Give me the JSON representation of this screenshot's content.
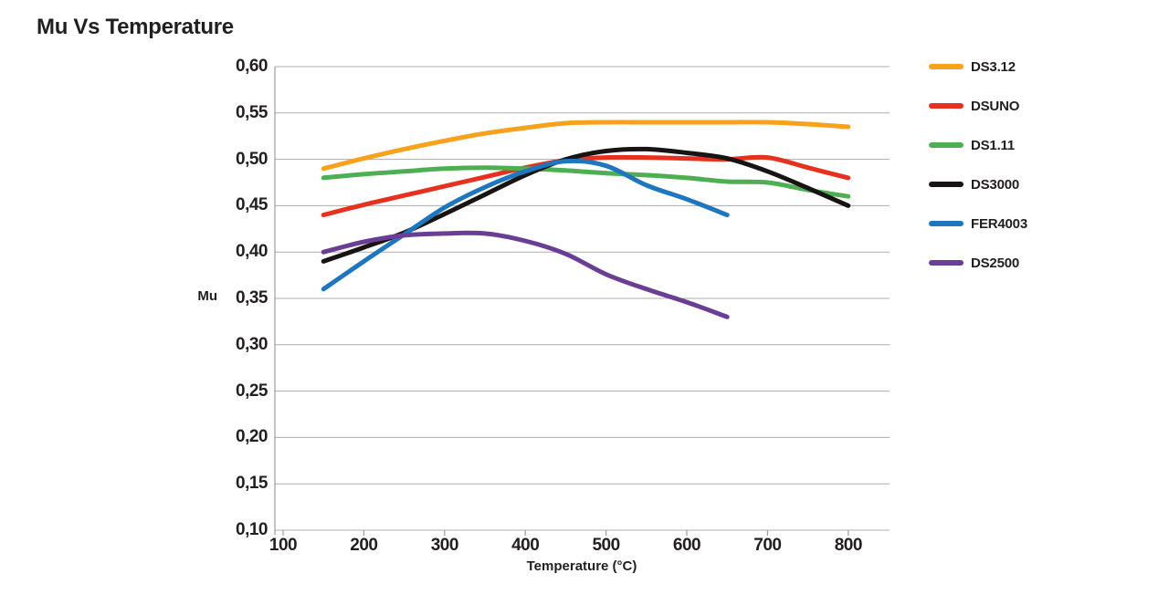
{
  "chart_data": {
    "type": "line",
    "title": "Mu Vs Temperature",
    "xlabel": "Temperature (°C)",
    "ylabel": "Mu",
    "xlim": [
      100,
      850
    ],
    "ylim": [
      0.1,
      0.6
    ],
    "grid": "horizontal",
    "legend_position": "right",
    "x_ticks": [
      {
        "label": "100",
        "value": 100
      },
      {
        "label": "200",
        "value": 200
      },
      {
        "label": "300",
        "value": 300
      },
      {
        "label": "400",
        "value": 400
      },
      {
        "label": "500",
        "value": 500
      },
      {
        "label": "600",
        "value": 600
      },
      {
        "label": "700",
        "value": 700
      },
      {
        "label": "800",
        "value": 800
      }
    ],
    "y_ticks": [
      {
        "label": "0,60",
        "value": 0.6
      },
      {
        "label": "0,55",
        "value": 0.55
      },
      {
        "label": "0,50",
        "value": 0.5
      },
      {
        "label": "0,45",
        "value": 0.45
      },
      {
        "label": "0,40",
        "value": 0.4
      },
      {
        "label": "0,35",
        "value": 0.35
      },
      {
        "label": "0,30",
        "value": 0.3
      },
      {
        "label": "0,25",
        "value": 0.25
      },
      {
        "label": "0,20",
        "value": 0.2
      },
      {
        "label": "0,15",
        "value": 0.15
      },
      {
        "label": "0,10",
        "value": 0.1
      }
    ],
    "series": [
      {
        "name": "DS3.12",
        "color": "#F7A11C",
        "points": [
          [
            150,
            0.49
          ],
          [
            200,
            0.501
          ],
          [
            250,
            0.511
          ],
          [
            300,
            0.52
          ],
          [
            350,
            0.528
          ],
          [
            400,
            0.534
          ],
          [
            450,
            0.539
          ],
          [
            500,
            0.54
          ],
          [
            550,
            0.54
          ],
          [
            600,
            0.54
          ],
          [
            650,
            0.54
          ],
          [
            700,
            0.54
          ],
          [
            750,
            0.538
          ],
          [
            800,
            0.535
          ]
        ]
      },
      {
        "name": "DSUNO",
        "color": "#E6311E",
        "points": [
          [
            150,
            0.44
          ],
          [
            200,
            0.451
          ],
          [
            250,
            0.461
          ],
          [
            300,
            0.471
          ],
          [
            350,
            0.481
          ],
          [
            400,
            0.491
          ],
          [
            450,
            0.499
          ],
          [
            500,
            0.502
          ],
          [
            550,
            0.502
          ],
          [
            600,
            0.501
          ],
          [
            650,
            0.5
          ],
          [
            700,
            0.502
          ],
          [
            750,
            0.491
          ],
          [
            800,
            0.48
          ]
        ]
      },
      {
        "name": "DS1.11",
        "color": "#4DAF51",
        "points": [
          [
            150,
            0.48
          ],
          [
            200,
            0.484
          ],
          [
            250,
            0.487
          ],
          [
            300,
            0.49
          ],
          [
            350,
            0.491
          ],
          [
            400,
            0.49
          ],
          [
            450,
            0.488
          ],
          [
            500,
            0.485
          ],
          [
            550,
            0.483
          ],
          [
            600,
            0.48
          ],
          [
            650,
            0.476
          ],
          [
            700,
            0.475
          ],
          [
            750,
            0.467
          ],
          [
            800,
            0.46
          ]
        ]
      },
      {
        "name": "DS3000",
        "color": "#171413",
        "points": [
          [
            150,
            0.39
          ],
          [
            200,
            0.405
          ],
          [
            250,
            0.421
          ],
          [
            300,
            0.441
          ],
          [
            350,
            0.462
          ],
          [
            400,
            0.483
          ],
          [
            450,
            0.5
          ],
          [
            500,
            0.509
          ],
          [
            550,
            0.511
          ],
          [
            600,
            0.507
          ],
          [
            650,
            0.501
          ],
          [
            700,
            0.487
          ],
          [
            750,
            0.469
          ],
          [
            800,
            0.45
          ]
        ]
      },
      {
        "name": "FER4003",
        "color": "#1E76BE",
        "points": [
          [
            150,
            0.36
          ],
          [
            200,
            0.39
          ],
          [
            250,
            0.419
          ],
          [
            300,
            0.448
          ],
          [
            350,
            0.47
          ],
          [
            400,
            0.487
          ],
          [
            450,
            0.498
          ],
          [
            500,
            0.493
          ],
          [
            550,
            0.472
          ],
          [
            600,
            0.457
          ],
          [
            650,
            0.44
          ]
        ]
      },
      {
        "name": "DS2500",
        "color": "#6B3E95",
        "points": [
          [
            150,
            0.4
          ],
          [
            200,
            0.411
          ],
          [
            250,
            0.418
          ],
          [
            300,
            0.42
          ],
          [
            350,
            0.42
          ],
          [
            400,
            0.412
          ],
          [
            450,
            0.398
          ],
          [
            500,
            0.376
          ],
          [
            550,
            0.36
          ],
          [
            600,
            0.346
          ],
          [
            650,
            0.33
          ]
        ]
      }
    ],
    "colors": {
      "grid": "#ADADAD",
      "axis": "#9C9C9C",
      "text": "#231F20",
      "background": "#FFFFFF"
    }
  }
}
